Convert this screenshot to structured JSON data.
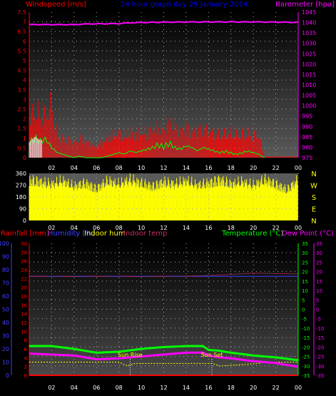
{
  "header": {
    "windspeed_label": "Windspeed [m/s]",
    "title": "24 hour graph day  29 January 2014",
    "barometer_label": "Barometer [hpa]"
  },
  "bottom_header": {
    "rainfall": "Rainfall [mm]",
    "humidity": "Humidity [%]",
    "indoor_hum": "Indoor hum",
    "indoor_temp": "Indoor temp",
    "temperature": "Temperature (°C)",
    "dew_point": "Dew Point (°C)"
  },
  "compass": [
    "N",
    "W",
    "S",
    "E",
    "N"
  ],
  "annotations": {
    "sunrise": "Sun Rise",
    "sunset": "Sun Set"
  },
  "colors": {
    "windspeed": "#ff0000",
    "barometer": "#ff00ff",
    "title": "#0000ff",
    "gust": "#00ff00",
    "winddir": "#ffff00",
    "temperature": "#00ff00",
    "dewpoint": "#ff00ff",
    "humidity": "#4040ff",
    "indoor_temp": "#c03060",
    "rainfall": "#ff0000",
    "indoor_hum": "#ffff00"
  },
  "chart_data": [
    {
      "type": "bar",
      "name": "wind-barometer",
      "x_ticks": [
        "02",
        "04",
        "06",
        "08",
        "10",
        "12",
        "14",
        "16",
        "18",
        "20",
        "22",
        "00"
      ],
      "y_left_ticks": [
        "0",
        "0.5",
        "1",
        "1.5",
        "2",
        "2.5",
        "3",
        "3.5",
        "4",
        "4.5",
        "5",
        "5.5",
        "6",
        "6.5",
        "7",
        "7.5"
      ],
      "y_left_range": [
        0,
        7.5
      ],
      "y_right_ticks": [
        "975",
        "980",
        "985",
        "990",
        "995",
        "1000",
        "1005",
        "1010",
        "1015",
        "1020",
        "1025",
        "1030",
        "1035",
        "1040",
        "1045"
      ],
      "y_right_range": [
        975,
        1045
      ],
      "wind_hours": [
        0,
        0.5,
        1,
        1.5,
        2,
        2.5,
        3,
        3.5,
        4,
        4.5,
        5,
        5.5,
        6,
        6.5,
        7,
        7.5,
        8,
        8.5,
        9,
        9.5,
        10,
        10.5,
        11,
        11.5,
        12,
        12.5,
        13,
        13.5,
        14,
        14.5,
        15,
        15.5,
        16,
        16.5,
        17,
        17.5,
        18,
        18.5,
        19,
        19.5,
        20,
        20.5,
        21
      ],
      "wind_speed": [
        2.5,
        3.1,
        2.8,
        3.0,
        3.6,
        1.4,
        1.3,
        1.2,
        1.0,
        1.4,
        1.1,
        0.9,
        0.8,
        1.0,
        1.3,
        1.5,
        1.6,
        1.4,
        1.7,
        1.5,
        1.8,
        1.6,
        1.9,
        2.0,
        1.9,
        2.3,
        2.1,
        1.8,
        2.0,
        1.7,
        1.9,
        1.8,
        1.9,
        1.6,
        1.5,
        1.7,
        1.6,
        1.5,
        1.7,
        1.6,
        1.5,
        1.6,
        0.0
      ],
      "gust_speed": [
        0.9,
        1.2,
        1.0,
        1.1,
        0.6,
        0.3,
        0.2,
        0.1,
        0.0,
        0.1,
        0.0,
        0.0,
        0.0,
        0.0,
        0.1,
        0.2,
        0.3,
        0.2,
        0.4,
        0.3,
        0.4,
        0.5,
        0.6,
        0.8,
        0.7,
        0.9,
        0.6,
        0.5,
        0.7,
        0.6,
        0.4,
        0.6,
        0.5,
        0.4,
        0.3,
        0.4,
        0.3,
        0.2,
        0.3,
        0.4,
        0.3,
        0.2,
        0.0
      ],
      "barometer_hours": [
        0,
        4,
        5,
        8,
        9,
        12,
        16,
        20,
        24
      ],
      "barometer_hpa": [
        1039.0,
        1039.0,
        1039.3,
        1039.5,
        1039.9,
        1040.2,
        1040.3,
        1040.3,
        1040.1
      ]
    },
    {
      "type": "bar",
      "name": "wind-direction",
      "x_ticks": [
        "02",
        "04",
        "06",
        "08",
        "10",
        "12",
        "14",
        "16",
        "18",
        "20",
        "22",
        "00"
      ],
      "y_ticks": [
        "0",
        "90",
        "180",
        "270",
        "360"
      ],
      "y_range": [
        0,
        360
      ],
      "hours": [
        0,
        1,
        2,
        3,
        4,
        5,
        6,
        7,
        8,
        9,
        10,
        11,
        12,
        13,
        14,
        15,
        16,
        17,
        18,
        19,
        20,
        21,
        22,
        23,
        24
      ],
      "direction_deg": [
        340,
        320,
        300,
        330,
        280,
        310,
        260,
        330,
        300,
        340,
        310,
        280,
        320,
        300,
        330,
        290,
        310,
        340,
        300,
        320,
        290,
        340,
        300,
        250,
        340
      ]
    },
    {
      "type": "line",
      "name": "temperature-humidity",
      "x_ticks": [
        "02",
        "04",
        "06",
        "08",
        "10",
        "12",
        "14",
        "16",
        "18",
        "20",
        "22",
        "00"
      ],
      "y_humidity_ticks": [
        "0",
        "10",
        "20",
        "30",
        "40",
        "50",
        "60",
        "70",
        "80",
        "90",
        "100"
      ],
      "y_humidity_range": [
        0,
        100
      ],
      "y_rain_ticks": [
        "0",
        "2",
        "4",
        "6",
        "8",
        "10",
        "12",
        "14",
        "16",
        "18",
        "20",
        "22",
        "24",
        "26",
        "28",
        "30"
      ],
      "y_rain_range": [
        0,
        30
      ],
      "y_temp_ticks": [
        "-35",
        "-30",
        "-25",
        "-20",
        "-15",
        "-10",
        "-5",
        "0",
        "5",
        "10",
        "15",
        "20",
        "25",
        "30",
        "35"
      ],
      "y_temp_range": [
        -35,
        35
      ],
      "hours": [
        0,
        2,
        4,
        6,
        8,
        10,
        12,
        14,
        15.5,
        16,
        17,
        18,
        20,
        22,
        24
      ],
      "temperature_c": [
        -19.5,
        -19.5,
        -21.0,
        -23.0,
        -22.5,
        -21.0,
        -20.0,
        -19.5,
        -19.5,
        -21.5,
        -22.0,
        -23.0,
        -24.5,
        -25.5,
        -27.0
      ],
      "dew_point_c": [
        -23.5,
        -24.0,
        -24.5,
        -26.5,
        -26.0,
        -25.0,
        -24.0,
        -23.0,
        -23.0,
        -24.5,
        -25.5,
        -26.0,
        -27.5,
        -28.5,
        -30.5
      ],
      "humidity_pct": [
        75,
        75,
        75,
        75,
        75,
        75,
        75,
        75,
        75,
        75,
        75,
        75,
        75,
        75,
        75
      ],
      "indoor_temp_c": [
        17.5,
        17.5,
        17.4,
        17.5,
        17.5,
        17.4,
        17.5,
        17.6,
        17.8,
        18.0,
        18.2,
        18.5,
        19.2,
        19.0,
        18.8
      ],
      "indoor_hum_hours": [
        0,
        3,
        6,
        7.2,
        7.8,
        8,
        8.8,
        9.3,
        16,
        16.4,
        17,
        20.5,
        21,
        22.5,
        24
      ],
      "indoor_hum_pct": [
        10,
        10,
        10,
        10,
        10,
        10,
        7,
        9,
        9,
        9,
        7,
        9,
        10,
        10,
        10
      ],
      "rainfall_mm": 0,
      "sunrise_hour": 9.0,
      "sunset_hour": 16.3
    }
  ]
}
